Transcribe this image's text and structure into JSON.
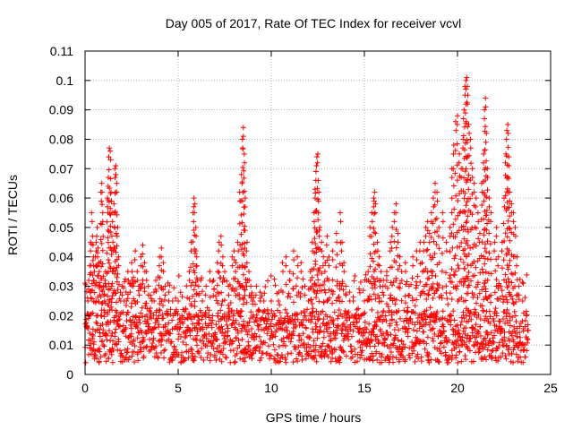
{
  "chart_data": {
    "type": "scatter",
    "title": "Day 005 of 2017, Rate Of TEC Index for receiver vcvl",
    "xlabel": "GPS time / hours",
    "ylabel": "ROTI / TECUs",
    "xlim": [
      0,
      25
    ],
    "ylim": [
      0,
      0.11
    ],
    "xticks": [
      0,
      5,
      10,
      15,
      20,
      25
    ],
    "xtick_labels": [
      "0",
      "5",
      "10",
      "15",
      "20",
      "25"
    ],
    "yticks": [
      0,
      0.01,
      0.02,
      0.03,
      0.04,
      0.05,
      0.06,
      0.07,
      0.08,
      0.09,
      0.1,
      0.11
    ],
    "ytick_labels": [
      "0",
      "0.01",
      "0.02",
      "0.03",
      "0.04",
      "0.05",
      "0.06",
      "0.07",
      "0.08",
      "0.09",
      "0.1",
      "0.11"
    ],
    "grid": true,
    "marker": "+",
    "color": "#ff0000",
    "series": [
      {
        "points": [
          [
            0.1,
            0.016
          ],
          [
            0.15,
            0.025
          ],
          [
            0.2,
            0.032
          ],
          [
            0.25,
            0.037
          ],
          [
            0.3,
            0.045
          ],
          [
            0.35,
            0.055
          ],
          [
            0.4,
            0.047
          ],
          [
            0.45,
            0.04
          ],
          [
            0.5,
            0.035
          ],
          [
            0.55,
            0.04
          ],
          [
            0.6,
            0.045
          ],
          [
            0.65,
            0.05
          ],
          [
            0.7,
            0.043
          ],
          [
            0.75,
            0.038
          ],
          [
            0.8,
            0.03
          ],
          [
            0.85,
            0.062
          ],
          [
            0.9,
            0.065
          ],
          [
            0.95,
            0.055
          ],
          [
            1.0,
            0.03
          ],
          [
            1.05,
            0.025
          ],
          [
            1.1,
            0.035
          ],
          [
            1.2,
            0.06
          ],
          [
            1.25,
            0.067
          ],
          [
            1.3,
            0.077
          ],
          [
            1.35,
            0.076
          ],
          [
            1.4,
            0.062
          ],
          [
            1.45,
            0.055
          ],
          [
            1.5,
            0.045
          ],
          [
            1.55,
            0.058
          ],
          [
            1.6,
            0.07
          ],
          [
            1.65,
            0.071
          ],
          [
            1.7,
            0.065
          ],
          [
            1.75,
            0.05
          ],
          [
            1.8,
            0.04
          ],
          [
            1.9,
            0.028
          ],
          [
            2.0,
            0.03
          ],
          [
            2.1,
            0.025
          ],
          [
            2.2,
            0.028
          ],
          [
            2.3,
            0.035
          ],
          [
            2.4,
            0.031
          ],
          [
            2.5,
            0.038
          ],
          [
            2.6,
            0.033
          ],
          [
            2.7,
            0.042
          ],
          [
            2.8,
            0.035
          ],
          [
            2.9,
            0.03
          ],
          [
            3.0,
            0.04
          ],
          [
            3.1,
            0.044
          ],
          [
            3.2,
            0.038
          ],
          [
            3.3,
            0.035
          ],
          [
            3.4,
            0.03
          ],
          [
            3.5,
            0.027
          ],
          [
            3.6,
            0.025
          ],
          [
            3.7,
            0.028
          ],
          [
            3.8,
            0.032
          ],
          [
            4.0,
            0.04
          ],
          [
            4.1,
            0.043
          ],
          [
            4.2,
            0.038
          ],
          [
            4.3,
            0.03
          ],
          [
            4.5,
            0.028
          ],
          [
            4.7,
            0.025
          ],
          [
            4.9,
            0.022
          ],
          [
            5.0,
            0.025
          ],
          [
            5.2,
            0.02
          ],
          [
            5.4,
            0.022
          ],
          [
            5.6,
            0.035
          ],
          [
            5.7,
            0.045
          ],
          [
            5.8,
            0.055
          ],
          [
            5.85,
            0.06
          ],
          [
            5.9,
            0.058
          ],
          [
            5.95,
            0.05
          ],
          [
            6.0,
            0.04
          ],
          [
            6.1,
            0.03
          ],
          [
            6.3,
            0.025
          ],
          [
            6.5,
            0.03
          ],
          [
            6.7,
            0.035
          ],
          [
            6.9,
            0.032
          ],
          [
            7.1,
            0.038
          ],
          [
            7.2,
            0.045
          ],
          [
            7.3,
            0.047
          ],
          [
            7.4,
            0.04
          ],
          [
            7.5,
            0.035
          ],
          [
            7.7,
            0.03
          ],
          [
            7.9,
            0.04
          ],
          [
            8.0,
            0.042
          ],
          [
            8.1,
            0.038
          ],
          [
            8.2,
            0.045
          ],
          [
            8.3,
            0.062
          ],
          [
            8.4,
            0.068
          ],
          [
            8.45,
            0.08
          ],
          [
            8.5,
            0.084
          ],
          [
            8.55,
            0.075
          ],
          [
            8.6,
            0.06
          ],
          [
            8.7,
            0.045
          ],
          [
            8.8,
            0.035
          ],
          [
            8.9,
            0.03
          ],
          [
            9.0,
            0.025
          ],
          [
            9.2,
            0.03
          ],
          [
            9.4,
            0.028
          ],
          [
            9.6,
            0.025
          ],
          [
            9.8,
            0.022
          ],
          [
            10.0,
            0.025
          ],
          [
            10.2,
            0.02
          ],
          [
            10.4,
            0.028
          ],
          [
            10.6,
            0.038
          ],
          [
            10.8,
            0.04
          ],
          [
            11.0,
            0.035
          ],
          [
            11.2,
            0.042
          ],
          [
            11.4,
            0.04
          ],
          [
            11.6,
            0.038
          ],
          [
            11.8,
            0.03
          ],
          [
            12.0,
            0.025
          ],
          [
            12.1,
            0.035
          ],
          [
            12.2,
            0.045
          ],
          [
            12.3,
            0.055
          ],
          [
            12.35,
            0.063
          ],
          [
            12.4,
            0.069
          ],
          [
            12.45,
            0.074
          ],
          [
            12.5,
            0.075
          ],
          [
            12.55,
            0.062
          ],
          [
            12.6,
            0.05
          ],
          [
            12.7,
            0.045
          ],
          [
            12.8,
            0.04
          ],
          [
            12.9,
            0.038
          ],
          [
            13.0,
            0.047
          ],
          [
            13.1,
            0.04
          ],
          [
            13.3,
            0.042
          ],
          [
            13.5,
            0.048
          ],
          [
            13.7,
            0.055
          ],
          [
            13.8,
            0.045
          ],
          [
            13.9,
            0.038
          ],
          [
            14.0,
            0.03
          ],
          [
            14.2,
            0.028
          ],
          [
            14.4,
            0.025
          ],
          [
            14.6,
            0.022
          ],
          [
            14.8,
            0.02
          ],
          [
            15.0,
            0.025
          ],
          [
            15.2,
            0.035
          ],
          [
            15.3,
            0.05
          ],
          [
            15.4,
            0.055
          ],
          [
            15.5,
            0.06
          ],
          [
            15.55,
            0.062
          ],
          [
            15.6,
            0.058
          ],
          [
            15.7,
            0.045
          ],
          [
            15.8,
            0.04
          ],
          [
            15.9,
            0.035
          ],
          [
            16.0,
            0.03
          ],
          [
            16.2,
            0.035
          ],
          [
            16.4,
            0.045
          ],
          [
            16.5,
            0.05
          ],
          [
            16.6,
            0.055
          ],
          [
            16.7,
            0.058
          ],
          [
            16.8,
            0.048
          ],
          [
            16.9,
            0.04
          ],
          [
            17.0,
            0.035
          ],
          [
            17.2,
            0.038
          ],
          [
            17.4,
            0.03
          ],
          [
            17.6,
            0.04
          ],
          [
            17.8,
            0.042
          ],
          [
            18.0,
            0.045
          ],
          [
            18.1,
            0.038
          ],
          [
            18.2,
            0.045
          ],
          [
            18.3,
            0.05
          ],
          [
            18.4,
            0.052
          ],
          [
            18.5,
            0.048
          ],
          [
            18.6,
            0.055
          ],
          [
            18.7,
            0.06
          ],
          [
            18.8,
            0.065
          ],
          [
            18.9,
            0.062
          ],
          [
            19.0,
            0.05
          ],
          [
            19.2,
            0.055
          ],
          [
            19.4,
            0.045
          ],
          [
            19.6,
            0.05
          ],
          [
            19.7,
            0.07
          ],
          [
            19.8,
            0.078
          ],
          [
            19.9,
            0.086
          ],
          [
            20.0,
            0.088
          ],
          [
            20.1,
            0.075
          ],
          [
            20.2,
            0.07
          ],
          [
            20.3,
            0.08
          ],
          [
            20.35,
            0.09
          ],
          [
            20.4,
            0.098
          ],
          [
            20.45,
            0.1
          ],
          [
            20.5,
            0.101
          ],
          [
            20.55,
            0.095
          ],
          [
            20.6,
            0.085
          ],
          [
            20.7,
            0.08
          ],
          [
            20.8,
            0.07
          ],
          [
            20.9,
            0.065
          ],
          [
            21.0,
            0.06
          ],
          [
            21.1,
            0.055
          ],
          [
            21.2,
            0.048
          ],
          [
            21.3,
            0.065
          ],
          [
            21.4,
            0.075
          ],
          [
            21.45,
            0.09
          ],
          [
            21.5,
            0.094
          ],
          [
            21.55,
            0.082
          ],
          [
            21.6,
            0.07
          ],
          [
            21.7,
            0.06
          ],
          [
            21.8,
            0.055
          ],
          [
            22.0,
            0.045
          ],
          [
            22.1,
            0.05
          ],
          [
            22.2,
            0.04
          ],
          [
            22.4,
            0.045
          ],
          [
            22.5,
            0.06
          ],
          [
            22.6,
            0.075
          ],
          [
            22.65,
            0.083
          ],
          [
            22.7,
            0.085
          ],
          [
            22.75,
            0.074
          ],
          [
            22.8,
            0.062
          ],
          [
            22.9,
            0.058
          ],
          [
            23.0,
            0.055
          ],
          [
            23.1,
            0.05
          ],
          [
            23.2,
            0.04
          ],
          [
            23.3,
            0.03
          ],
          [
            23.5,
            0.025
          ],
          [
            23.7,
            0.02
          ],
          [
            23.8,
            0.015
          ]
        ]
      }
    ],
    "baseline_band": {
      "x_range": [
        0,
        23.8
      ],
      "y_low": 0.004,
      "y_high": 0.022
    }
  }
}
